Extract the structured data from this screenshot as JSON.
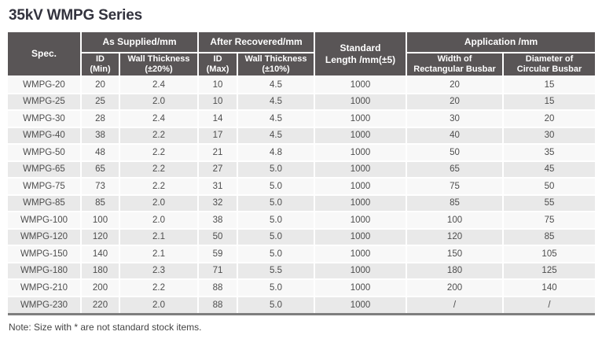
{
  "page": {
    "title": "35kV WMPG Series",
    "note": "Note: Size with * are not standard stock items."
  },
  "table": {
    "header": {
      "spec": "Spec.",
      "as_supplied": "As Supplied/mm",
      "after_recovered": "After Recovered/mm",
      "standard_length": "Standard\nLength /mm(±5)",
      "application": "Application /mm",
      "id_min": "ID\n(Min)",
      "wall_thickness_20": "Wall Thickness\n(±20%)",
      "id_max": "ID\n(Max)",
      "wall_thickness_10": "Wall Thickness\n(±10%)",
      "width_rectangular_busbar": "Width of\nRectangular Busbar",
      "diameter_circular_busbar": "Diameter of\nCircular Busbar"
    },
    "rows": [
      [
        "WMPG-20",
        "20",
        "2.4",
        "10",
        "4.5",
        "1000",
        "20",
        "15"
      ],
      [
        "WMPG-25",
        "25",
        "2.0",
        "10",
        "4.5",
        "1000",
        "20",
        "15"
      ],
      [
        "WMPG-30",
        "28",
        "2.4",
        "14",
        "4.5",
        "1000",
        "30",
        "20"
      ],
      [
        "WMPG-40",
        "38",
        "2.2",
        "17",
        "4.5",
        "1000",
        "40",
        "30"
      ],
      [
        "WMPG-50",
        "48",
        "2.2",
        "21",
        "4.8",
        "1000",
        "50",
        "35"
      ],
      [
        "WMPG-65",
        "65",
        "2.2",
        "27",
        "5.0",
        "1000",
        "65",
        "45"
      ],
      [
        "WMPG-75",
        "73",
        "2.2",
        "31",
        "5.0",
        "1000",
        "75",
        "50"
      ],
      [
        "WMPG-85",
        "85",
        "2.0",
        "32",
        "5.0",
        "1000",
        "85",
        "55"
      ],
      [
        "WMPG-100",
        "100",
        "2.0",
        "38",
        "5.0",
        "1000",
        "100",
        "75"
      ],
      [
        "WMPG-120",
        "120",
        "2.1",
        "50",
        "5.0",
        "1000",
        "120",
        "85"
      ],
      [
        "WMPG-150",
        "140",
        "2.1",
        "59",
        "5.0",
        "1000",
        "150",
        "105"
      ],
      [
        "WMPG-180",
        "180",
        "2.3",
        "71",
        "5.5",
        "1000",
        "180",
        "125"
      ],
      [
        "WMPG-210",
        "200",
        "2.2",
        "88",
        "5.0",
        "1000",
        "200",
        "140"
      ],
      [
        "WMPG-230",
        "220",
        "2.0",
        "88",
        "5.0",
        "1000",
        "/",
        "/"
      ]
    ]
  },
  "colors": {
    "header_bg": "#595556",
    "header_text": "#ffffff",
    "title_text": "#33333e",
    "body_text": "#4d4d4d",
    "row_odd": "#f8f8f8",
    "row_even": "#e9e9e9",
    "bottom_border": "#7e7e7e"
  }
}
